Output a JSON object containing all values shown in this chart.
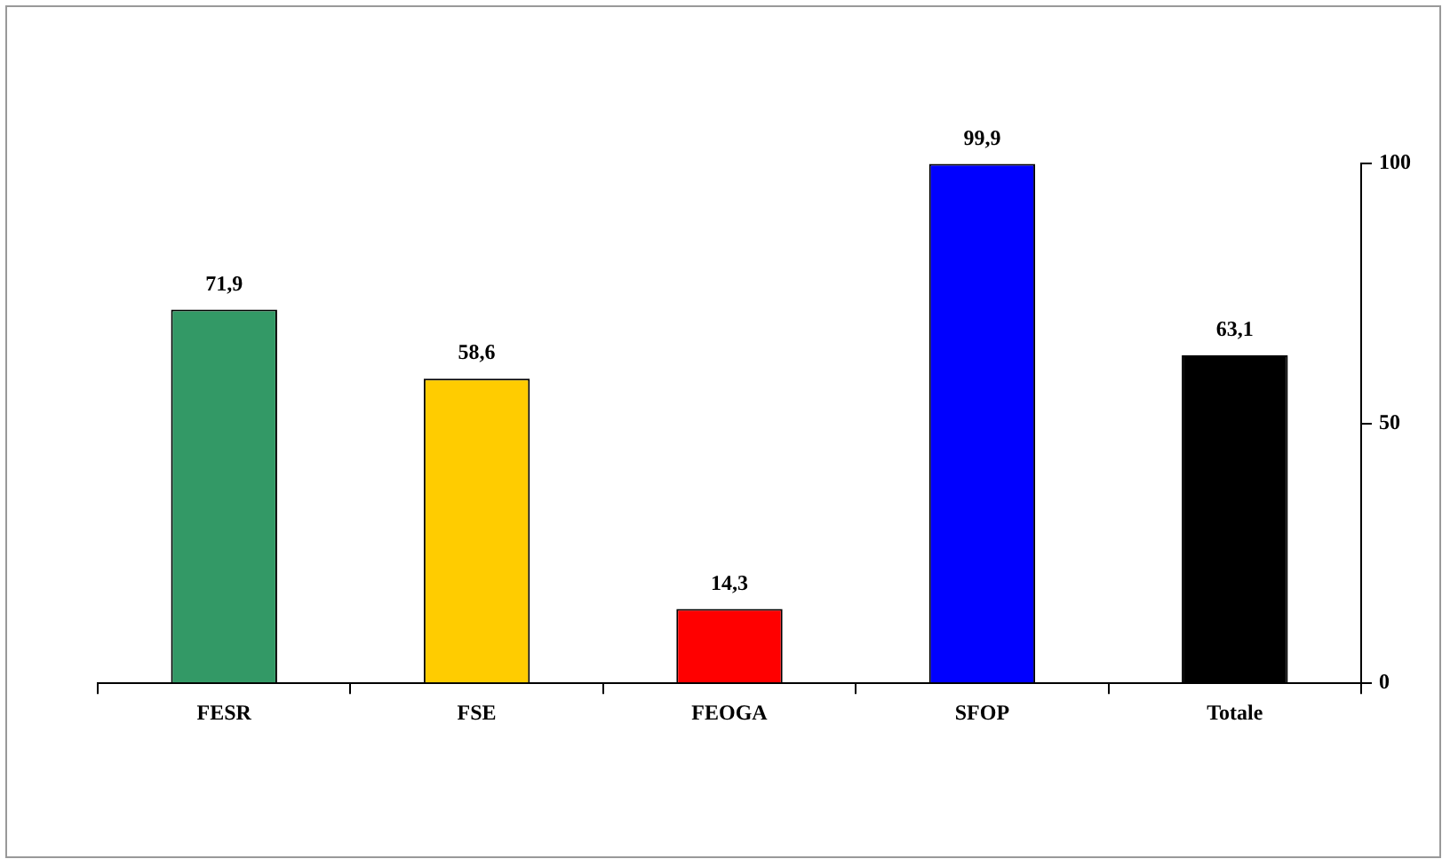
{
  "chart_data": {
    "type": "bar",
    "categories": [
      "FESR",
      "FSE",
      "FEOGA",
      "SFOP",
      "Totale"
    ],
    "values": [
      71.9,
      58.6,
      14.3,
      99.9,
      63.1
    ],
    "colors": [
      "#339966",
      "#ffcc00",
      "#ff0000",
      "#0000ff",
      "#000000"
    ],
    "value_labels": [
      "71,9",
      "58,6",
      "14,3",
      "99,9",
      "63,1"
    ],
    "ylim": [
      0,
      100
    ],
    "yticks": [
      0,
      50,
      100
    ],
    "grid": false,
    "legend": false
  }
}
